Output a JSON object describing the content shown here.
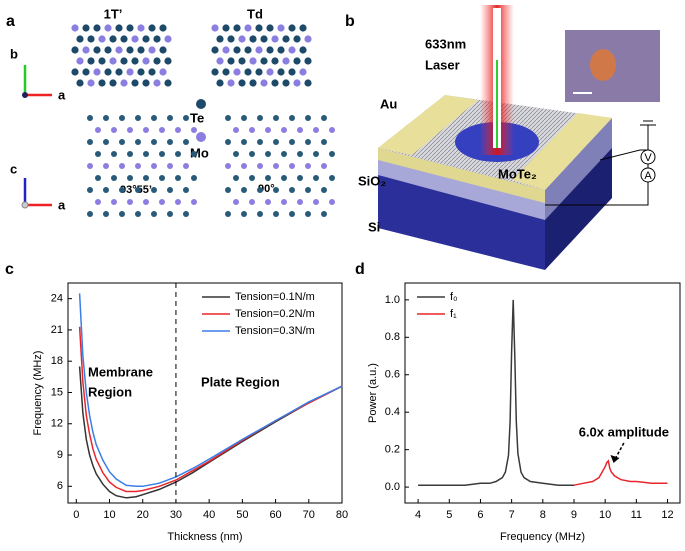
{
  "panel_a": {
    "letter": "a",
    "phase1": "1T’",
    "phase2": "Td",
    "axis_top_y": "b",
    "axis_top_x": "a",
    "legend_te": "Te",
    "legend_mo": "Mo",
    "axis_bottom_y": "c",
    "axis_bottom_x": "a",
    "angle1": "93°55’",
    "angle2": "90°"
  },
  "panel_b": {
    "letter": "b",
    "laser_line1": "633nm",
    "laser_line2": "Laser",
    "au": "Au",
    "sio2": "SiO₂",
    "mote2": "MoTe₂",
    "si": "Si",
    "voltmeter": "V",
    "ammeter": "A"
  },
  "chart_data": [
    {
      "type": "line",
      "letter": "c",
      "x_label": "Thickness (nm)",
      "y_label": "Frequency (MHz)",
      "region1_line1": "Membrane",
      "region1_line2": "Region",
      "region2": "Plate Region",
      "x": [
        1,
        2,
        3,
        4,
        5,
        6,
        8,
        10,
        12,
        15,
        18,
        20,
        25,
        30,
        35,
        40,
        50,
        60,
        70,
        80
      ],
      "series": [
        {
          "name": "Tension=0.1N/m",
          "color": "#333333",
          "values": [
            17.5,
            13,
            10.5,
            9,
            8,
            7.2,
            6.2,
            5.5,
            5.1,
            4.9,
            5.0,
            5.2,
            5.7,
            6.4,
            7.3,
            8.3,
            10.3,
            12.2,
            14,
            15.6
          ]
        },
        {
          "name": "Tension=0.2N/m",
          "color": "#e8262b",
          "values": [
            21.3,
            16,
            12.8,
            11,
            9.6,
            8.6,
            7.3,
            6.4,
            5.9,
            5.5,
            5.5,
            5.6,
            6.0,
            6.6,
            7.5,
            8.4,
            10.4,
            12.3,
            14,
            15.6
          ]
        },
        {
          "name": "Tension=0.3N/m",
          "color": "#3a7ee8",
          "values": [
            24.5,
            18.5,
            15,
            12.8,
            11.2,
            10,
            8.5,
            7.4,
            6.7,
            6.1,
            6.0,
            6.0,
            6.3,
            6.9,
            7.7,
            8.6,
            10.5,
            12.3,
            14.1,
            15.6
          ]
        }
      ],
      "divider_x": 30,
      "xlim": [
        -2.5,
        80
      ],
      "ylim": [
        4.4,
        25.5
      ],
      "xticks": [
        0,
        10,
        20,
        30,
        40,
        50,
        60,
        70,
        80
      ],
      "yticks": [
        6,
        9,
        12,
        15,
        18,
        21,
        24
      ],
      "legend": "upper right"
    },
    {
      "type": "line",
      "letter": "d",
      "x_label": "Frequency (MHz)",
      "y_label": "Power (a.u.)",
      "annotation": "6.0x amplitude",
      "series": [
        {
          "name": "f₀",
          "color": "#3a3a3a",
          "x": [
            4.0,
            4.5,
            5.0,
            5.5,
            6.0,
            6.3,
            6.5,
            6.7,
            6.8,
            6.9,
            6.95,
            7.0,
            7.05,
            7.1,
            7.15,
            7.2,
            7.3,
            7.4,
            7.6,
            8.0,
            8.5,
            9.0
          ],
          "values": [
            0.01,
            0.01,
            0.01,
            0.01,
            0.02,
            0.02,
            0.03,
            0.05,
            0.08,
            0.17,
            0.35,
            0.72,
            1.0,
            0.7,
            0.35,
            0.18,
            0.08,
            0.05,
            0.03,
            0.02,
            0.01,
            0.01
          ]
        },
        {
          "name": "f₁",
          "color": "#e8262b",
          "x": [
            9.0,
            9.3,
            9.6,
            9.8,
            9.9,
            10.0,
            10.05,
            10.1,
            10.15,
            10.2,
            10.3,
            10.5,
            10.8,
            11.0,
            11.5,
            12.0
          ],
          "values": [
            0.01,
            0.02,
            0.03,
            0.05,
            0.08,
            0.11,
            0.13,
            0.14,
            0.1,
            0.08,
            0.06,
            0.04,
            0.03,
            0.03,
            0.02,
            0.02
          ]
        }
      ],
      "xlim": [
        3.58,
        12.4
      ],
      "ylim": [
        -0.085,
        1.09
      ],
      "xticks": [
        4,
        5,
        6,
        7,
        8,
        9,
        10,
        11,
        12
      ],
      "yticks": [
        {
          "value": 0,
          "label": "0.0"
        },
        {
          "value": 0.2,
          "label": "0.2"
        },
        {
          "value": 0.4,
          "label": "0.4"
        },
        {
          "value": 0.6,
          "label": "0.6"
        },
        {
          "value": 0.8,
          "label": "0.8"
        },
        {
          "value": 1.0,
          "label": "1.0"
        }
      ],
      "legend": "upper left"
    }
  ]
}
